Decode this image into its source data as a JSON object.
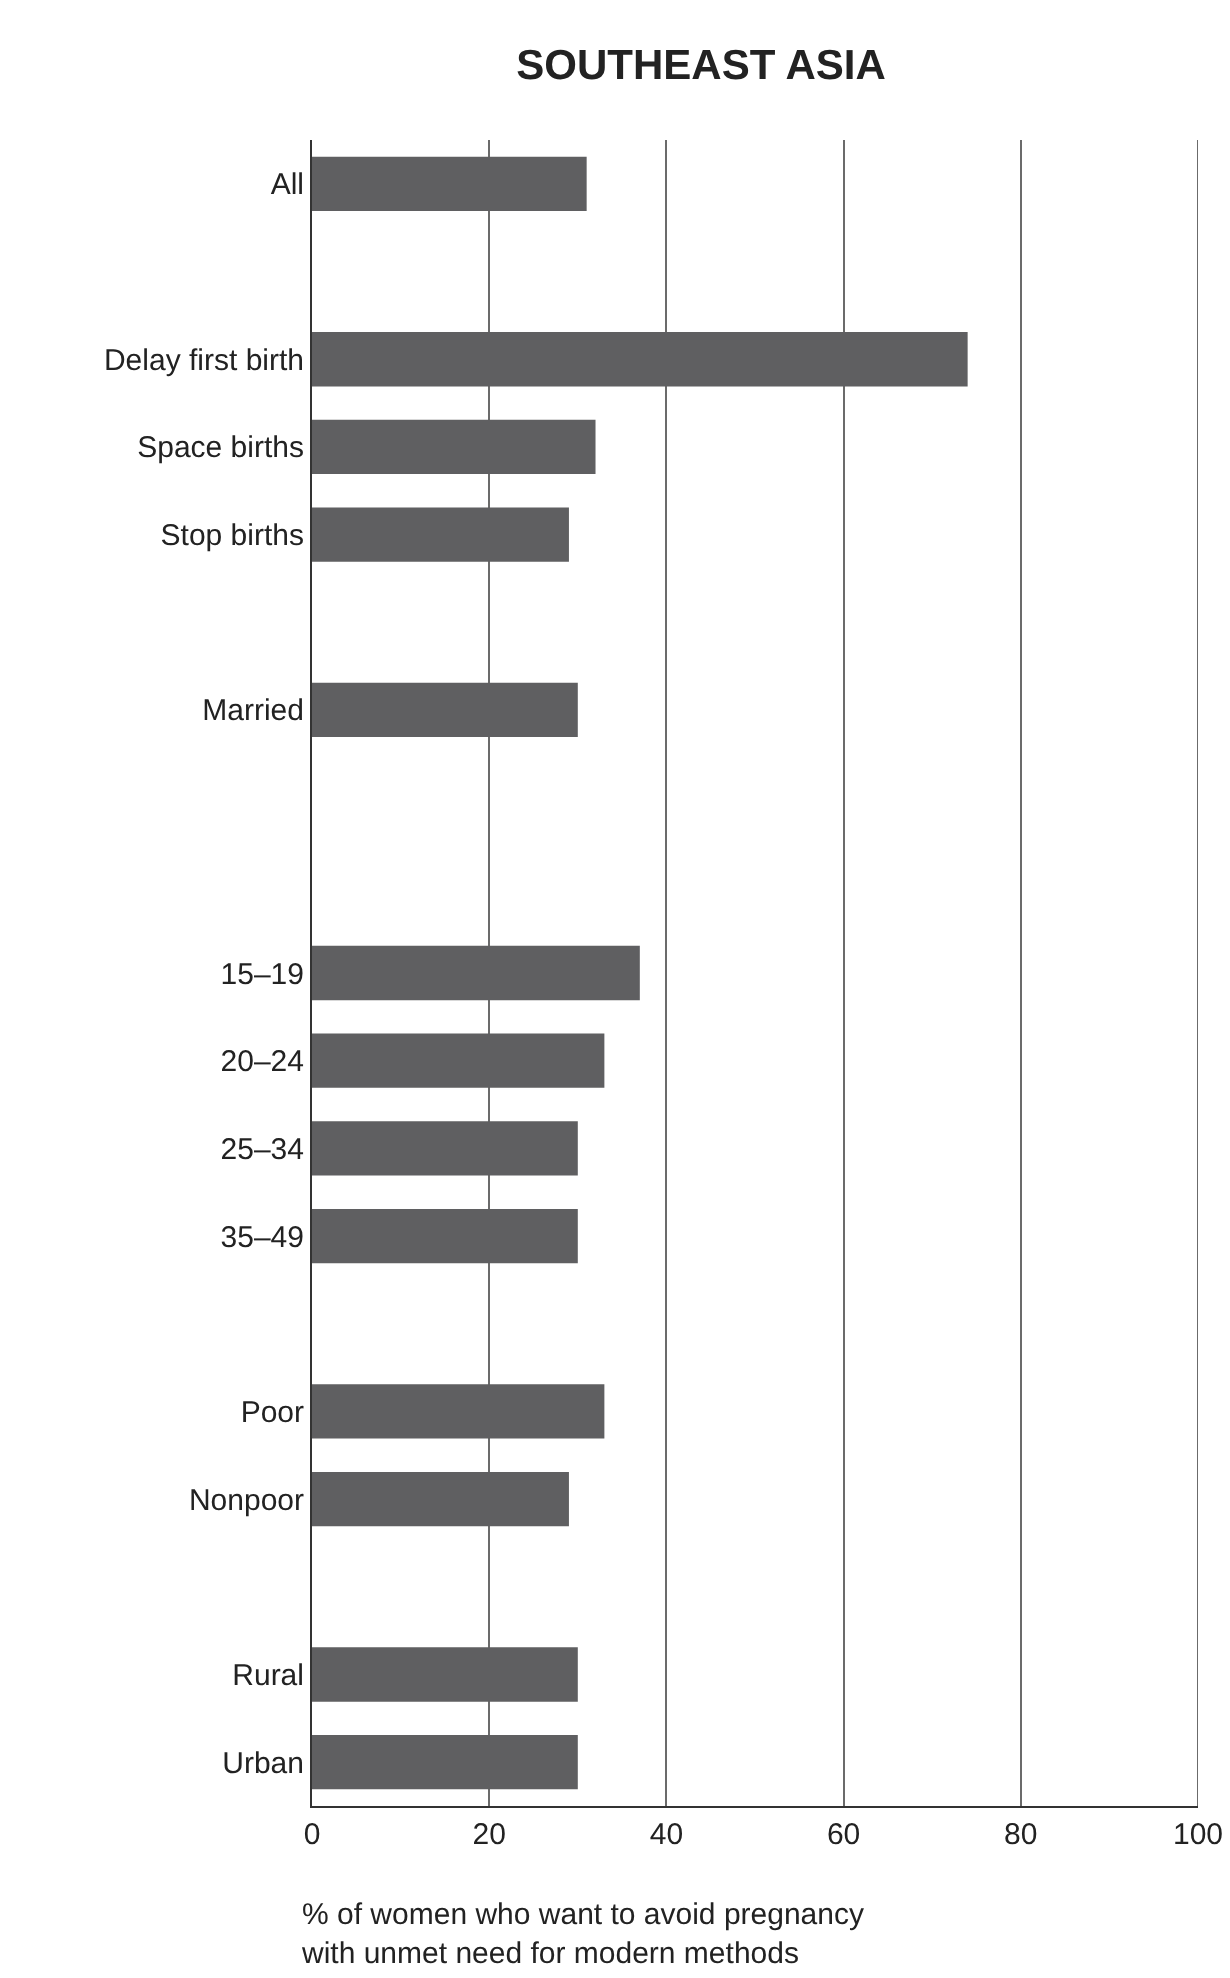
{
  "chart_data": {
    "type": "bar",
    "orientation": "horizontal",
    "title": "SOUTHEAST ASIA",
    "xlabel": "% of women who want to avoid pregnancy\nwith unmet need for modern methods",
    "categories": [
      "All",
      null,
      "Delay first birth",
      "Space births",
      "Stop births",
      null,
      "Married",
      null,
      null,
      "15–19",
      "20–24",
      "25–34",
      "35–49",
      null,
      "Poor",
      "Nonpoor",
      null,
      "Rural",
      "Urban"
    ],
    "values": [
      31,
      null,
      74,
      32,
      29,
      null,
      30,
      null,
      null,
      37,
      33,
      30,
      30,
      null,
      33,
      29,
      null,
      30,
      30
    ],
    "color": "#5f5f61",
    "xlim": [
      0,
      100
    ],
    "xticks": [
      0,
      20,
      40,
      60,
      80,
      100
    ],
    "grid": "x"
  }
}
